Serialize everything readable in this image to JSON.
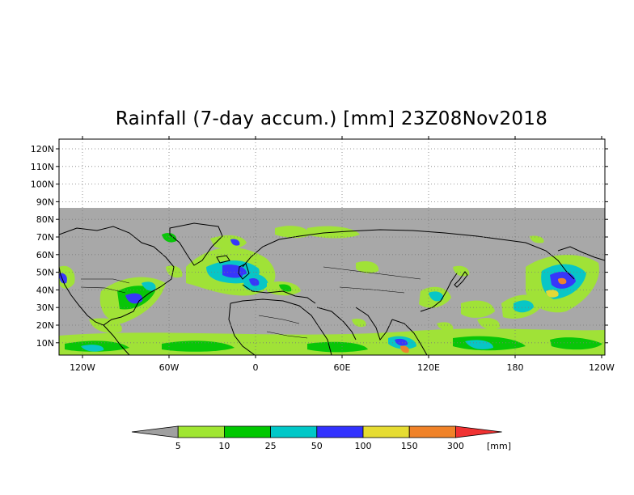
{
  "map": {
    "title": "Rainfall (7-day accum.) [mm] 23Z08Nov2018",
    "lat_labels": [
      "120N",
      "110N",
      "100N",
      "90N",
      "80N",
      "70N",
      "60N",
      "50N",
      "40N",
      "30N",
      "20N",
      "10N"
    ],
    "lon_labels": [
      "120W",
      "60W",
      "0",
      "60E",
      "120E",
      "180",
      "120W"
    ],
    "colors": {
      "no_data": "#ffffff",
      "below_threshold": "#a8a8a8",
      "grid": "#7a7a7a",
      "coast": "#000000"
    }
  },
  "colorbar": {
    "unit": "[mm]",
    "thresholds": [
      "5",
      "10",
      "25",
      "50",
      "100",
      "150",
      "300"
    ],
    "colors": [
      "#a0a0a0",
      "#a0e632",
      "#00c800",
      "#00c8c8",
      "#3232ff",
      "#e6dc32",
      "#f08228",
      "#f03232"
    ]
  }
}
